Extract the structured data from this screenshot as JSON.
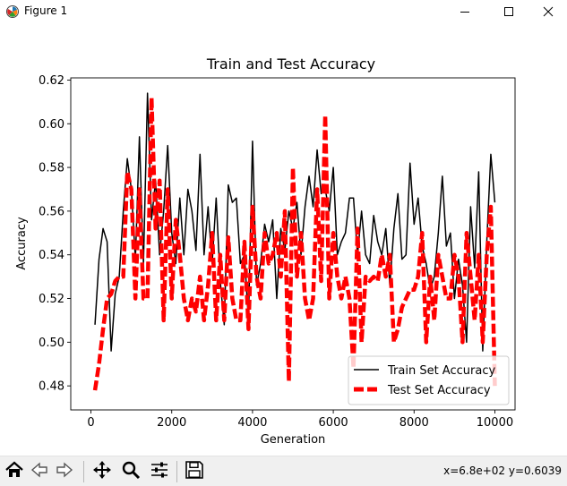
{
  "window": {
    "title": "Figure 1",
    "minimize_icon": "minimize-icon",
    "maximize_icon": "maximize-icon",
    "close_icon": "close-icon"
  },
  "toolbar": {
    "buttons": [
      {
        "name": "home-button",
        "icon": "home-icon"
      },
      {
        "name": "back-button",
        "icon": "back-arrow-icon"
      },
      {
        "name": "forward-button",
        "icon": "forward-arrow-icon"
      },
      {
        "name": "pan-button",
        "icon": "pan-arrows-icon"
      },
      {
        "name": "zoom-button",
        "icon": "magnifier-icon"
      },
      {
        "name": "configure-subplots-button",
        "icon": "sliders-icon"
      },
      {
        "name": "save-button",
        "icon": "floppy-disk-icon"
      }
    ],
    "coords": "x=6.8e+02 y=0.6039"
  },
  "chart_data": {
    "type": "line",
    "title": "Train and Test Accuracy",
    "xlabel": "Generation",
    "ylabel": "Accuracy",
    "xlim": [
      -500,
      10500
    ],
    "ylim": [
      0.469,
      0.621
    ],
    "xticks": [
      0,
      2000,
      4000,
      6000,
      8000,
      10000
    ],
    "xtick_labels": [
      "0",
      "2000",
      "4000",
      "6000",
      "8000",
      "10000"
    ],
    "yticks": [
      0.48,
      0.5,
      0.52,
      0.54,
      0.56,
      0.58,
      0.6,
      0.62
    ],
    "ytick_labels": [
      "0.48",
      "0.50",
      "0.52",
      "0.54",
      "0.56",
      "0.58",
      "0.60",
      "0.62"
    ],
    "grid": false,
    "legend_position": "lower-right",
    "series": [
      {
        "name": "Train Set Accuracy",
        "color": "#000000",
        "style": "solid",
        "x": [
          100,
          200,
          300,
          400,
          500,
          600,
          700,
          800,
          900,
          1000,
          1100,
          1200,
          1300,
          1400,
          1500,
          1600,
          1700,
          1800,
          1900,
          2000,
          2100,
          2200,
          2300,
          2400,
          2500,
          2600,
          2700,
          2800,
          2900,
          3000,
          3100,
          3200,
          3300,
          3400,
          3500,
          3600,
          3700,
          3800,
          3900,
          4000,
          4100,
          4200,
          4300,
          4400,
          4500,
          4600,
          4700,
          4800,
          4900,
          5000,
          5100,
          5200,
          5300,
          5400,
          5500,
          5600,
          5700,
          5800,
          5900,
          6000,
          6100,
          6200,
          6300,
          6400,
          6500,
          6600,
          6700,
          6800,
          6900,
          7000,
          7100,
          7200,
          7300,
          7400,
          7500,
          7600,
          7700,
          7800,
          7900,
          8000,
          8100,
          8200,
          8300,
          8400,
          8500,
          8600,
          8700,
          8800,
          8900,
          9000,
          9100,
          9200,
          9300,
          9400,
          9500,
          9600,
          9700,
          9800,
          9900,
          10000
        ],
        "y": [
          0.508,
          0.538,
          0.552,
          0.546,
          0.496,
          0.522,
          0.53,
          0.56,
          0.584,
          0.57,
          0.538,
          0.594,
          0.536,
          0.614,
          0.556,
          0.574,
          0.54,
          0.56,
          0.59,
          0.55,
          0.536,
          0.566,
          0.54,
          0.57,
          0.56,
          0.542,
          0.586,
          0.54,
          0.562,
          0.536,
          0.566,
          0.528,
          0.508,
          0.572,
          0.564,
          0.566,
          0.536,
          0.54,
          0.51,
          0.592,
          0.526,
          0.536,
          0.554,
          0.546,
          0.556,
          0.52,
          0.552,
          0.542,
          0.56,
          0.552,
          0.564,
          0.54,
          0.562,
          0.576,
          0.562,
          0.588,
          0.568,
          0.57,
          0.56,
          0.58,
          0.54,
          0.546,
          0.55,
          0.566,
          0.566,
          0.54,
          0.56,
          0.54,
          0.536,
          0.558,
          0.546,
          0.54,
          0.552,
          0.526,
          0.552,
          0.568,
          0.538,
          0.54,
          0.582,
          0.554,
          0.566,
          0.544,
          0.536,
          0.524,
          0.53,
          0.55,
          0.576,
          0.544,
          0.55,
          0.52,
          0.538,
          0.526,
          0.5,
          0.562,
          0.534,
          0.578,
          0.496,
          0.546,
          0.586,
          0.564
        ]
      },
      {
        "name": "Test Set Accuracy",
        "color": "#ff0000",
        "style": "dashed",
        "x": [
          100,
          200,
          300,
          400,
          500,
          600,
          700,
          800,
          900,
          1000,
          1100,
          1200,
          1300,
          1400,
          1500,
          1600,
          1700,
          1800,
          1900,
          2000,
          2100,
          2200,
          2300,
          2400,
          2500,
          2600,
          2700,
          2800,
          2900,
          3000,
          3100,
          3200,
          3300,
          3400,
          3500,
          3600,
          3700,
          3800,
          3900,
          4000,
          4100,
          4200,
          4300,
          4400,
          4500,
          4600,
          4700,
          4800,
          4900,
          5000,
          5100,
          5200,
          5300,
          5400,
          5500,
          5600,
          5700,
          5800,
          5900,
          6000,
          6100,
          6200,
          6300,
          6400,
          6500,
          6600,
          6700,
          6800,
          6900,
          7000,
          7100,
          7200,
          7300,
          7400,
          7500,
          7600,
          7700,
          7800,
          7900,
          8000,
          8100,
          8200,
          8300,
          8400,
          8500,
          8600,
          8700,
          8800,
          8900,
          9000,
          9100,
          9200,
          9300,
          9400,
          9500,
          9600,
          9700,
          9800,
          9900,
          10000
        ],
        "y": [
          0.478,
          0.49,
          0.506,
          0.52,
          0.522,
          0.528,
          0.53,
          0.53,
          0.578,
          0.57,
          0.52,
          0.57,
          0.52,
          0.52,
          0.612,
          0.552,
          0.574,
          0.51,
          0.57,
          0.52,
          0.556,
          0.54,
          0.52,
          0.51,
          0.52,
          0.514,
          0.53,
          0.51,
          0.526,
          0.55,
          0.51,
          0.54,
          0.51,
          0.548,
          0.52,
          0.51,
          0.51,
          0.546,
          0.506,
          0.562,
          0.53,
          0.52,
          0.55,
          0.536,
          0.54,
          0.55,
          0.53,
          0.56,
          0.482,
          0.58,
          0.53,
          0.55,
          0.52,
          0.51,
          0.52,
          0.57,
          0.528,
          0.604,
          0.52,
          0.55,
          0.53,
          0.52,
          0.53,
          0.52,
          0.488,
          0.552,
          0.5,
          0.53,
          0.528,
          0.53,
          0.528,
          0.54,
          0.53,
          0.54,
          0.5,
          0.506,
          0.516,
          0.52,
          0.524,
          0.524,
          0.53,
          0.55,
          0.5,
          0.53,
          0.51,
          0.54,
          0.53,
          0.52,
          0.52,
          0.54,
          0.53,
          0.5,
          0.55,
          0.53,
          0.51,
          0.54,
          0.5,
          0.54,
          0.562,
          0.48
        ]
      }
    ]
  }
}
